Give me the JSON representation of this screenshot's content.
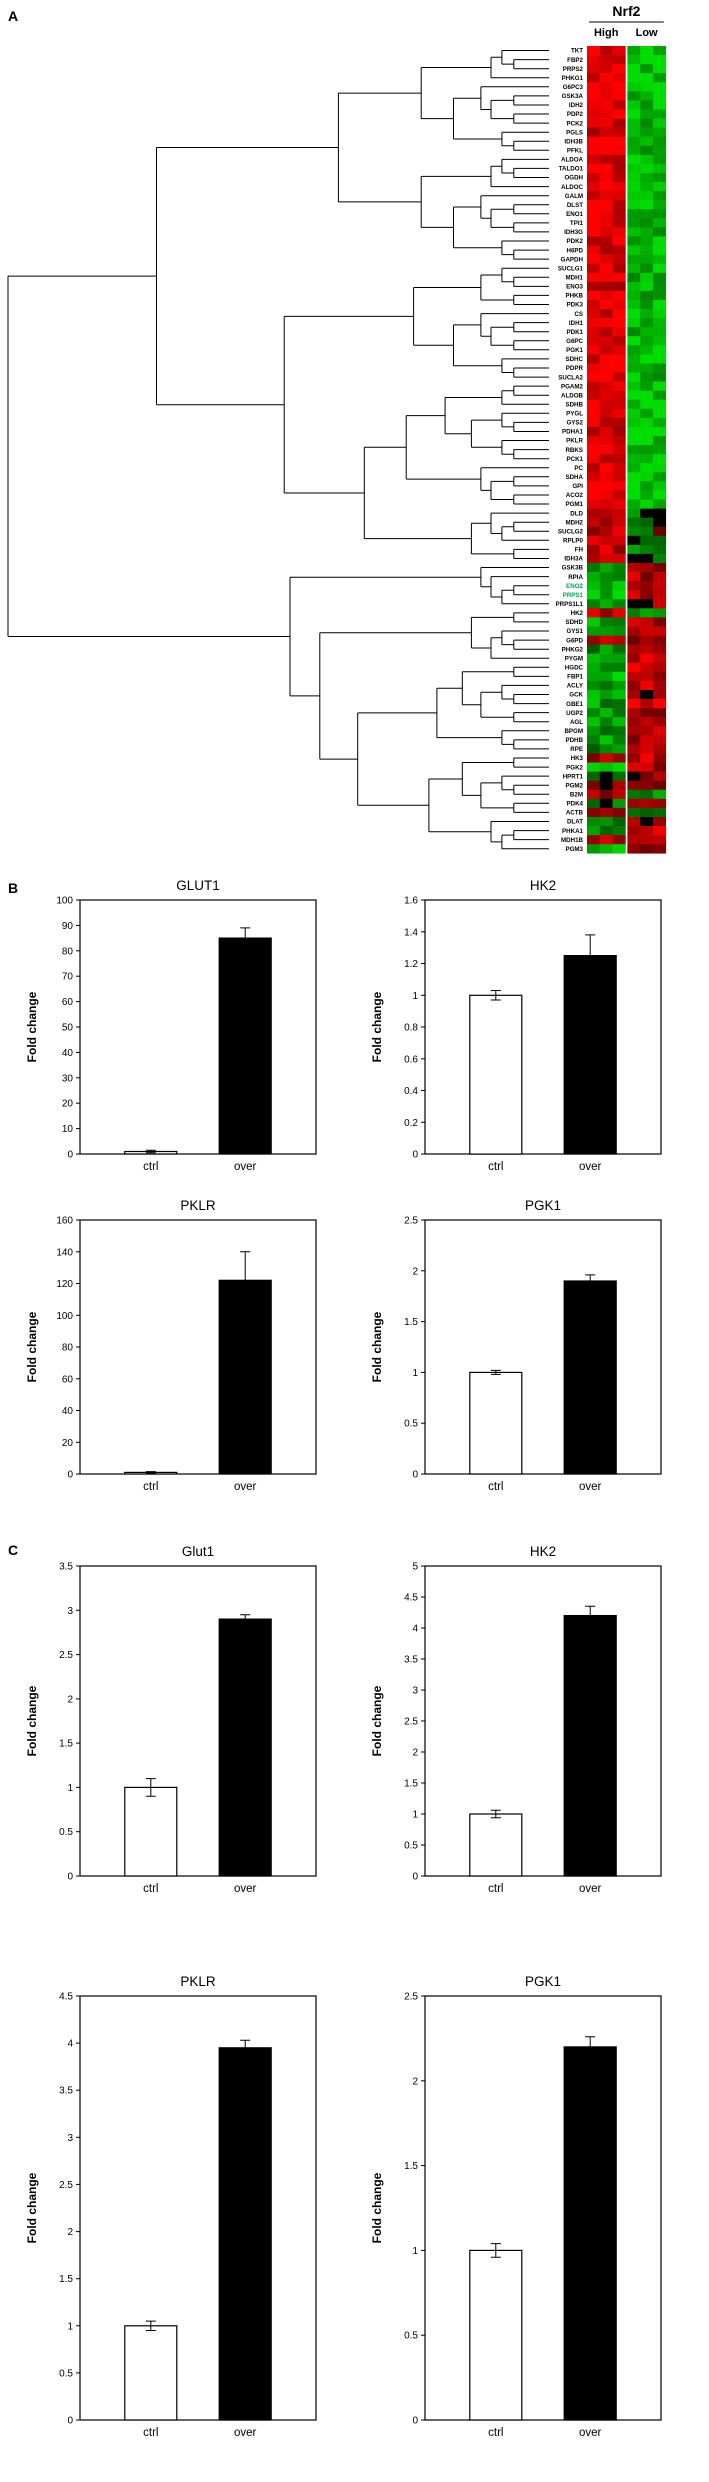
{
  "figure": {
    "panels": {
      "a": "A",
      "b": "B",
      "c": "C"
    }
  },
  "panel_a": {
    "header": "Nrf2",
    "group_labels": [
      "High",
      "Low"
    ],
    "colors": {
      "up": "#ff0000",
      "down": "#00dd00",
      "neutral": "#000000"
    },
    "highlight_color": "#00a651",
    "genes": [
      {
        "name": "TKT",
        "hi": 0.9,
        "lo": -0.85
      },
      {
        "name": "FBP2",
        "hi": 0.8,
        "lo": -0.8
      },
      {
        "name": "PRPS2",
        "hi": 0.85,
        "lo": -0.75
      },
      {
        "name": "PHKG1",
        "hi": 0.75,
        "lo": -0.8
      },
      {
        "name": "G6PC3",
        "hi": 0.85,
        "lo": -0.7
      },
      {
        "name": "GSK3A",
        "hi": 0.8,
        "lo": -0.85
      },
      {
        "name": "IDH2",
        "hi": 0.9,
        "lo": -0.8
      },
      {
        "name": "PDP2",
        "hi": 0.8,
        "lo": -0.75
      },
      {
        "name": "PCK2",
        "hi": 0.85,
        "lo": -0.8
      },
      {
        "name": "PGLS",
        "hi": 0.8,
        "lo": -0.85
      },
      {
        "name": "IDH3B",
        "hi": 0.9,
        "lo": -0.8
      },
      {
        "name": "PFKL",
        "hi": 0.85,
        "lo": -0.75
      },
      {
        "name": "ALDOA",
        "hi": 0.8,
        "lo": -0.85
      },
      {
        "name": "TALDO1",
        "hi": 0.85,
        "lo": -0.8
      },
      {
        "name": "OGDH",
        "hi": 0.8,
        "lo": -0.8
      },
      {
        "name": "ALDOC",
        "hi": 0.9,
        "lo": -0.75
      },
      {
        "name": "GALM",
        "hi": 0.85,
        "lo": -0.85
      },
      {
        "name": "DLST",
        "hi": 0.8,
        "lo": -0.8
      },
      {
        "name": "ENO1",
        "hi": 0.9,
        "lo": -0.85
      },
      {
        "name": "TPI1",
        "hi": 0.85,
        "lo": -0.8
      },
      {
        "name": "IDH3G",
        "hi": 0.8,
        "lo": -0.75
      },
      {
        "name": "PDK2",
        "hi": 0.85,
        "lo": -0.85
      },
      {
        "name": "H6PD",
        "hi": 0.8,
        "lo": -0.8
      },
      {
        "name": "GAPDH",
        "hi": 0.9,
        "lo": -0.85
      },
      {
        "name": "SUCLG1",
        "hi": 0.8,
        "lo": -0.7
      },
      {
        "name": "MDH1",
        "hi": 0.85,
        "lo": -0.75
      },
      {
        "name": "ENO3",
        "hi": 0.75,
        "lo": -0.7
      },
      {
        "name": "PHKB",
        "hi": 0.8,
        "lo": -0.75
      },
      {
        "name": "PDK3",
        "hi": 0.95,
        "lo": -0.85
      },
      {
        "name": "CS",
        "hi": 0.9,
        "lo": -0.8
      },
      {
        "name": "IDH1",
        "hi": 0.85,
        "lo": -0.85
      },
      {
        "name": "PDK1",
        "hi": 0.9,
        "lo": -0.8
      },
      {
        "name": "G6PC",
        "hi": 0.85,
        "lo": -0.75
      },
      {
        "name": "PGK1",
        "hi": 0.9,
        "lo": -0.85
      },
      {
        "name": "SDHC",
        "hi": 0.85,
        "lo": -0.8
      },
      {
        "name": "PDPR",
        "hi": 0.8,
        "lo": -0.85
      },
      {
        "name": "SUCLA2",
        "hi": 0.9,
        "lo": -0.8
      },
      {
        "name": "PGAM2",
        "hi": 0.8,
        "lo": -0.9
      },
      {
        "name": "ALDOB",
        "hi": 0.85,
        "lo": -0.85
      },
      {
        "name": "SDHB",
        "hi": 0.8,
        "lo": -0.9
      },
      {
        "name": "PYGL",
        "hi": 0.75,
        "lo": -0.85
      },
      {
        "name": "GYS2",
        "hi": 0.85,
        "lo": -0.9
      },
      {
        "name": "PDHA1",
        "hi": 0.8,
        "lo": -0.85
      },
      {
        "name": "PKLR",
        "hi": 0.85,
        "lo": -0.9
      },
      {
        "name": "RBKS",
        "hi": 0.8,
        "lo": -0.85
      },
      {
        "name": "PCK1",
        "hi": 0.75,
        "lo": -0.9
      },
      {
        "name": "PC",
        "hi": 0.85,
        "lo": -0.85
      },
      {
        "name": "SDHA",
        "hi": 0.8,
        "lo": -0.9
      },
      {
        "name": "GPI",
        "hi": 0.85,
        "lo": -0.85
      },
      {
        "name": "ACO2",
        "hi": 0.8,
        "lo": -0.9
      },
      {
        "name": "PGM1",
        "hi": 0.85,
        "lo": -0.85
      },
      {
        "name": "DLD",
        "hi": 0.6,
        "lo": -0.2
      },
      {
        "name": "MDH2",
        "hi": 0.65,
        "lo": -0.1
      },
      {
        "name": "SUCLG2",
        "hi": 0.6,
        "lo": -0.25
      },
      {
        "name": "RPLP0",
        "hi": 0.55,
        "lo": -0.15
      },
      {
        "name": "FH",
        "hi": 0.6,
        "lo": -0.2
      },
      {
        "name": "IDH3A",
        "hi": 0.65,
        "lo": -0.15
      },
      {
        "name": "GSK3B",
        "hi": -0.4,
        "lo": 0.3
      },
      {
        "name": "RPIA",
        "hi": -0.75,
        "lo": 0.5
      },
      {
        "name": "ENO2",
        "hi": -0.8,
        "lo": 0.55,
        "label_color": "#00a651"
      },
      {
        "name": "PRPS1",
        "hi": -0.8,
        "lo": 0.5,
        "label_color": "#00a651"
      },
      {
        "name": "PRPS1L1",
        "hi": -0.7,
        "lo": 0.45
      },
      {
        "name": "HK2",
        "hi": 0.5,
        "lo": -0.4
      },
      {
        "name": "SDHD",
        "hi": -0.6,
        "lo": 0.5
      },
      {
        "name": "GYS1",
        "hi": -0.7,
        "lo": 0.4
      },
      {
        "name": "G6PD",
        "hi": 0.7,
        "lo": 0.3
      },
      {
        "name": "PHKG2",
        "hi": -0.5,
        "lo": 0.2
      },
      {
        "name": "PYGM",
        "hi": -0.8,
        "lo": 0.6
      },
      {
        "name": "HGDC",
        "hi": -0.6,
        "lo": 0.7
      },
      {
        "name": "FBP1",
        "hi": -0.7,
        "lo": 0.5
      },
      {
        "name": "ACLY",
        "hi": -0.4,
        "lo": 0.6
      },
      {
        "name": "GCK",
        "hi": -0.8,
        "lo": 0.4
      },
      {
        "name": "GBE1",
        "hi": -0.5,
        "lo": 0.8
      },
      {
        "name": "UGP2",
        "hi": -0.6,
        "lo": 0.3
      },
      {
        "name": "AGL",
        "hi": -0.7,
        "lo": 0.6
      },
      {
        "name": "BPGM",
        "hi": -0.3,
        "lo": 0.7
      },
      {
        "name": "PDHB",
        "hi": -0.6,
        "lo": 0.4
      },
      {
        "name": "RPE",
        "hi": -0.5,
        "lo": 0.5
      },
      {
        "name": "HK3",
        "hi": 0.4,
        "lo": 0.6
      },
      {
        "name": "PGK2",
        "hi": -0.6,
        "lo": 0.5
      },
      {
        "name": "HPRT1",
        "hi": -0.2,
        "lo": 0.4
      },
      {
        "name": "PGM2",
        "hi": 0.3,
        "lo": 0.5
      },
      {
        "name": "B2M",
        "hi": 0.5,
        "lo": -0.3
      },
      {
        "name": "PDK4",
        "hi": -0.4,
        "lo": 0.7
      },
      {
        "name": "ACTB",
        "hi": 0.2,
        "lo": -0.5
      },
      {
        "name": "DLAT",
        "hi": -0.5,
        "lo": 0.3
      },
      {
        "name": "PHKA1",
        "hi": -0.3,
        "lo": 0.6
      },
      {
        "name": "MDH1B",
        "hi": 0.4,
        "lo": 0.3
      },
      {
        "name": "PGM3",
        "hi": -0.6,
        "lo": 0.4
      }
    ]
  },
  "bar_colors": {
    "ctrl": "#ffffff",
    "over": "#000000"
  },
  "chart_data": [
    {
      "type": "bar",
      "panel": "B",
      "title": "GLUT1",
      "ylabel": "Fold change",
      "categories": [
        "ctrl",
        "over"
      ],
      "values": [
        1,
        85
      ],
      "errors": [
        0.5,
        4
      ],
      "ylim": [
        0,
        100
      ],
      "ystep": 10
    },
    {
      "type": "bar",
      "panel": "B",
      "title": "HK2",
      "ylabel": "Fold change",
      "categories": [
        "ctrl",
        "over"
      ],
      "values": [
        1.0,
        1.25
      ],
      "errors": [
        0.03,
        0.13
      ],
      "ylim": [
        0,
        1.6
      ],
      "ystep": 0.2
    },
    {
      "type": "bar",
      "panel": "B",
      "title": "PKLR",
      "ylabel": "Fold change",
      "categories": [
        "ctrl",
        "over"
      ],
      "values": [
        1,
        122
      ],
      "errors": [
        0.5,
        18
      ],
      "ylim": [
        0,
        160
      ],
      "ystep": 20
    },
    {
      "type": "bar",
      "panel": "B",
      "title": "PGK1",
      "ylabel": "Fold change",
      "categories": [
        "ctrl",
        "over"
      ],
      "values": [
        1.0,
        1.9
      ],
      "errors": [
        0.02,
        0.06
      ],
      "ylim": [
        0,
        2.5
      ],
      "ystep": 0.5
    },
    {
      "type": "bar",
      "panel": "C",
      "title": "Glut1",
      "ylabel": "Fold change",
      "categories": [
        "ctrl",
        "over"
      ],
      "values": [
        1.0,
        2.9
      ],
      "errors": [
        0.1,
        0.05
      ],
      "ylim": [
        0,
        3.5
      ],
      "ystep": 0.5
    },
    {
      "type": "bar",
      "panel": "C",
      "title": "HK2",
      "ylabel": "Fold change",
      "categories": [
        "ctrl",
        "over"
      ],
      "values": [
        1.0,
        4.2
      ],
      "errors": [
        0.06,
        0.15
      ],
      "ylim": [
        0,
        5
      ],
      "ystep": 0.5
    },
    {
      "type": "bar",
      "panel": "C",
      "title": "PKLR",
      "ylabel": "Fold change",
      "categories": [
        "ctrl",
        "over"
      ],
      "values": [
        1.0,
        3.95
      ],
      "errors": [
        0.05,
        0.08
      ],
      "ylim": [
        0,
        4.5
      ],
      "ystep": 0.5
    },
    {
      "type": "bar",
      "panel": "C",
      "title": "PGK1",
      "ylabel": "Fold change",
      "categories": [
        "ctrl",
        "over"
      ],
      "values": [
        1.0,
        2.2
      ],
      "errors": [
        0.04,
        0.06
      ],
      "ylim": [
        0,
        2.5
      ],
      "ystep": 0.5
    }
  ]
}
